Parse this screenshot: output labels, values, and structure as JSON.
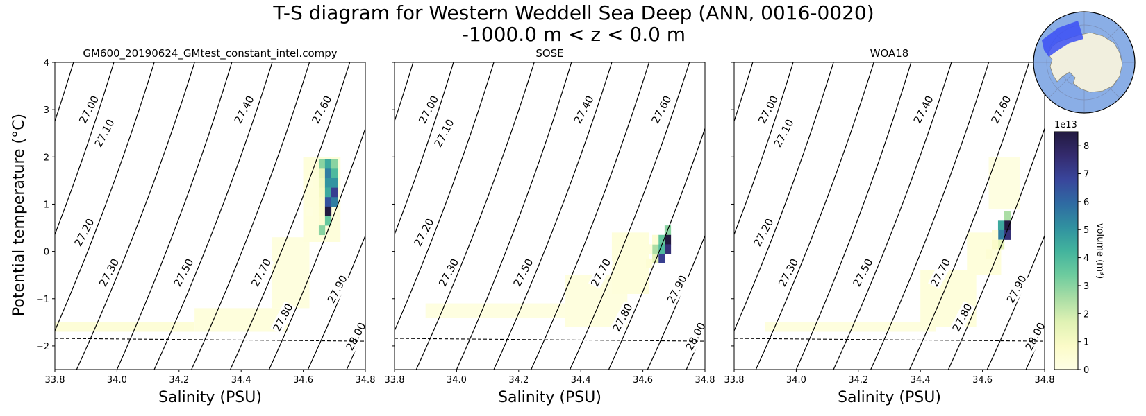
{
  "title_line1": "T-S diagram for Western Weddell Sea Deep (ANN, 0016-0020)",
  "title_line2": "-1000.0 m < z < 0.0 m",
  "xlabel": "Salinity (PSU)",
  "ylabel": "Potential temperature (°C)",
  "colorbar": {
    "label": "volume (m³)",
    "exponent": "1e13",
    "ticks": [
      "0",
      "1",
      "2",
      "3",
      "4",
      "5",
      "6",
      "7",
      "8"
    ],
    "range": [
      0,
      8.5
    ],
    "colormap": [
      "#ffffe5",
      "#fbfbc8",
      "#e0f2b4",
      "#a9dda5",
      "#6ccb9e",
      "#42b39d",
      "#3090a0",
      "#2f6aa2",
      "#39459b",
      "#342b6e",
      "#221a40"
    ]
  },
  "inset_map": {
    "ocean_color": "#8aaee6",
    "land_color": "#f1efde",
    "region_color": "#3b4ff5"
  },
  "chart_data": {
    "type": "heatmap",
    "xlim": [
      33.8,
      34.8
    ],
    "ylim": [
      -2.5,
      4
    ],
    "x_ticks": [
      "33.8",
      "34.0",
      "34.2",
      "34.4",
      "34.6",
      "34.8"
    ],
    "y_ticks": [
      "−2",
      "−1",
      "0",
      "1",
      "2",
      "3",
      "4"
    ],
    "freezing_line": [
      [
        33.8,
        -1.84
      ],
      [
        34.8,
        -1.9
      ]
    ],
    "density_contours": [
      {
        "label": "27.00",
        "s_at_t": [
          [
            -2.5,
            33.49
          ],
          [
            4.0,
            33.86
          ]
        ],
        "label_at": [
          33.91,
          3.0
        ]
      },
      {
        "label": "27.10",
        "s_at_t": [
          [
            -2.5,
            33.62
          ],
          [
            4.0,
            33.99
          ]
        ],
        "label_at": [
          33.96,
          2.5
        ]
      },
      {
        "label": "27.20",
        "s_at_t": [
          [
            -2.5,
            33.745
          ],
          [
            4.0,
            34.12
          ]
        ],
        "label_at": [
          33.895,
          0.4
        ]
      },
      {
        "label": "27.30",
        "s_at_t": [
          [
            -2.5,
            33.87
          ],
          [
            4.0,
            34.25
          ]
        ],
        "label_at": [
          33.975,
          -0.45
        ]
      },
      {
        "label": "27.40",
        "s_at_t": [
          [
            -2.5,
            34.0
          ],
          [
            4.0,
            34.37
          ]
        ],
        "label_at": [
          34.41,
          3.0
        ]
      },
      {
        "label": "27.50",
        "s_at_t": [
          [
            -2.5,
            34.12
          ],
          [
            4.0,
            34.5
          ]
        ],
        "label_at": [
          34.215,
          -0.45
        ]
      },
      {
        "label": "27.60",
        "s_at_t": [
          [
            -2.5,
            34.24
          ],
          [
            4.0,
            34.62
          ]
        ],
        "label_at": [
          34.66,
          3.0
        ]
      },
      {
        "label": "27.70",
        "s_at_t": [
          [
            -2.5,
            34.365
          ],
          [
            4.0,
            34.75
          ]
        ],
        "label_at": [
          34.465,
          -0.45
        ]
      },
      {
        "label": "27.80",
        "s_at_t": [
          [
            -2.5,
            34.49
          ],
          [
            4.0,
            34.87
          ]
        ],
        "label_at": [
          34.535,
          -1.4
        ]
      },
      {
        "label": "27.90",
        "s_at_t": [
          [
            -2.5,
            34.615
          ],
          [
            4.0,
            35.0
          ]
        ],
        "label_at": [
          34.71,
          -0.8
        ]
      },
      {
        "label": "28.00",
        "s_at_t": [
          [
            -2.5,
            34.74
          ],
          [
            4.0,
            35.12
          ]
        ],
        "label_at": [
          34.77,
          -1.8
        ]
      }
    ],
    "panels": [
      {
        "title": "GM600_20190624_GMtest_constant_intel.compy",
        "cells": [
          [
            34.66,
            1.85,
            3.0
          ],
          [
            34.66,
            1.65,
            1.5
          ],
          [
            34.66,
            1.45,
            1.2
          ],
          [
            34.66,
            1.25,
            1.0
          ],
          [
            34.66,
            1.05,
            0.8
          ],
          [
            34.66,
            0.85,
            0.7
          ],
          [
            34.66,
            0.65,
            0.6
          ],
          [
            34.66,
            0.45,
            3.0
          ],
          [
            34.68,
            1.85,
            4.5
          ],
          [
            34.68,
            1.65,
            5.5
          ],
          [
            34.68,
            1.45,
            5.0
          ],
          [
            34.68,
            1.25,
            4.5
          ],
          [
            34.68,
            1.05,
            6.5
          ],
          [
            34.68,
            0.85,
            8.5
          ],
          [
            34.68,
            0.65,
            3.5
          ],
          [
            34.7,
            1.85,
            3.0
          ],
          [
            34.7,
            1.65,
            4.0
          ],
          [
            34.7,
            1.45,
            5.0
          ],
          [
            34.7,
            1.25,
            7.0
          ],
          [
            34.7,
            1.05,
            5.5
          ],
          [
            34.64,
            1.75,
            0.4
          ],
          [
            34.64,
            1.25,
            0.3
          ],
          [
            34.64,
            0.65,
            0.3
          ],
          [
            34.62,
            1.45,
            0.2
          ],
          [
            34.62,
            0.85,
            0.2
          ]
        ],
        "haze": [
          [
            33.8,
            -1.7,
            34.25,
            -1.5,
            0.4
          ],
          [
            34.25,
            -1.7,
            34.55,
            -1.2,
            0.25
          ],
          [
            34.5,
            -1.2,
            34.62,
            0.3,
            0.2
          ],
          [
            34.6,
            0.2,
            34.72,
            2.0,
            0.3
          ]
        ]
      },
      {
        "title": "SOSE",
        "cells": [
          [
            34.68,
            0.45,
            3.0
          ],
          [
            34.68,
            0.25,
            8.5
          ],
          [
            34.68,
            0.05,
            7.5
          ],
          [
            34.66,
            0.25,
            3.5
          ],
          [
            34.66,
            0.05,
            4.0
          ],
          [
            34.66,
            -0.15,
            7.0
          ],
          [
            34.64,
            0.05,
            2.5
          ],
          [
            34.64,
            -0.15,
            1.5
          ],
          [
            34.64,
            0.25,
            0.5
          ],
          [
            34.62,
            -0.25,
            0.5
          ],
          [
            34.62,
            0.05,
            0.3
          ],
          [
            34.6,
            -0.45,
            0.3
          ]
        ],
        "haze": [
          [
            33.9,
            -1.4,
            34.4,
            -1.1,
            0.15
          ],
          [
            34.35,
            -1.6,
            34.55,
            -0.5,
            0.2
          ],
          [
            34.5,
            -0.9,
            34.62,
            0.4,
            0.3
          ]
        ]
      },
      {
        "title": "WOA18",
        "cells": [
          [
            34.68,
            0.75,
            2.5
          ],
          [
            34.68,
            0.55,
            8.5
          ],
          [
            34.68,
            0.35,
            7.5
          ],
          [
            34.66,
            0.55,
            4.5
          ],
          [
            34.66,
            0.35,
            5.5
          ],
          [
            34.66,
            0.15,
            1.5
          ],
          [
            34.64,
            0.15,
            0.8
          ],
          [
            34.64,
            0.35,
            0.4
          ],
          [
            34.62,
            -0.05,
            0.5
          ],
          [
            34.62,
            -0.25,
            0.3
          ]
        ],
        "haze": [
          [
            33.9,
            -1.7,
            34.45,
            -1.5,
            0.2
          ],
          [
            34.4,
            -1.6,
            34.58,
            -0.4,
            0.3
          ],
          [
            34.55,
            -0.5,
            34.66,
            0.4,
            0.3
          ],
          [
            34.62,
            0.9,
            34.72,
            2.0,
            0.12
          ]
        ]
      }
    ]
  }
}
